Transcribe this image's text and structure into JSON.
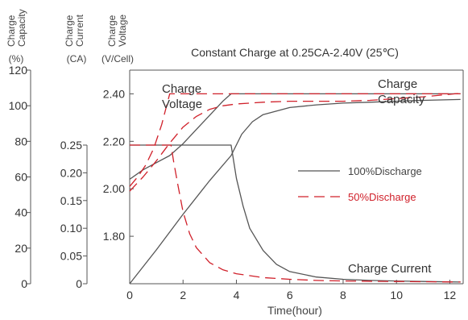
{
  "chart_data": {
    "type": "line",
    "title": "Constant Charge at 0.25CA-2.40V  (25℃)",
    "xlabel": "Time(hour)",
    "xlim": [
      0,
      12.5
    ],
    "xticks": [
      "0",
      "2",
      "4",
      "6",
      "8",
      "10",
      "12"
    ],
    "grid": false,
    "legend_position": "center-right",
    "axes": {
      "capacity": {
        "label_lines": [
          "Charge",
          "Capacity"
        ],
        "unit": "(%)",
        "ylim": [
          0,
          120
        ],
        "ticks": [
          "0",
          "20",
          "40",
          "60",
          "80",
          "100",
          "120"
        ]
      },
      "current": {
        "label_lines": [
          "Charge",
          "Current"
        ],
        "unit": "(CA)",
        "ylim": [
          0,
          0.25
        ],
        "ticks": [
          "0",
          "0.05",
          "0.10",
          "0.15",
          "0.20",
          "0.25"
        ]
      },
      "voltage": {
        "label_lines": [
          "Charge",
          "Voltage"
        ],
        "unit": "(V/Cell)",
        "ylim": [
          1.6,
          2.5
        ],
        "ticks": [
          "1.80",
          "2.00",
          "2.20",
          "2.40"
        ]
      }
    },
    "legend": [
      {
        "label": "100%Discharge",
        "color": "#555555",
        "style": "solid"
      },
      {
        "label": "50%Discharge",
        "color": "#d0202a",
        "style": "dashed"
      }
    ],
    "annotations": [
      {
        "lines": [
          "Charge",
          "Voltage"
        ]
      },
      {
        "lines": [
          "Charge",
          "Capacity"
        ]
      },
      {
        "lines": [
          "Charge Current"
        ]
      }
    ],
    "series": [
      {
        "group": "100%Discharge",
        "quantity": "voltage",
        "axis": "voltage",
        "x": [
          0,
          0.5,
          1,
          1.5,
          2,
          2.5,
          3,
          3.5,
          3.8,
          12.4
        ],
        "y": [
          2.04,
          2.08,
          2.11,
          2.14,
          2.19,
          2.25,
          2.31,
          2.37,
          2.4,
          2.4
        ]
      },
      {
        "group": "100%Discharge",
        "quantity": "current",
        "axis": "current",
        "x": [
          0,
          3.8,
          3.9,
          4.0,
          4.25,
          4.5,
          5,
          5.5,
          6,
          7,
          8,
          9,
          10,
          11,
          12.4
        ],
        "y": [
          0.25,
          0.25,
          0.22,
          0.19,
          0.14,
          0.1,
          0.06,
          0.035,
          0.022,
          0.012,
          0.008,
          0.006,
          0.005,
          0.004,
          0.003
        ]
      },
      {
        "group": "100%Discharge",
        "quantity": "capacity",
        "axis": "capacity",
        "x": [
          0,
          1,
          2,
          3,
          3.8,
          4.2,
          4.6,
          5,
          6,
          7,
          8,
          9,
          10,
          11,
          12.4
        ],
        "y": [
          0,
          19,
          39,
          58,
          72,
          84,
          91,
          95,
          99,
          100.5,
          101.5,
          102,
          102.5,
          103,
          103.5
        ]
      },
      {
        "group": "50%Discharge",
        "quantity": "voltage",
        "axis": "voltage",
        "x": [
          0,
          0.3,
          0.6,
          0.9,
          1.2,
          1.5,
          12.4
        ],
        "y": [
          2.01,
          2.05,
          2.1,
          2.17,
          2.27,
          2.4,
          2.4
        ]
      },
      {
        "group": "50%Discharge",
        "quantity": "current",
        "axis": "current",
        "x": [
          0,
          1.55,
          1.65,
          1.8,
          2,
          2.25,
          2.5,
          3,
          3.5,
          4,
          5,
          6,
          7,
          8,
          10,
          12.4
        ],
        "y": [
          0.25,
          0.25,
          0.22,
          0.18,
          0.13,
          0.09,
          0.065,
          0.038,
          0.025,
          0.018,
          0.011,
          0.008,
          0.006,
          0.005,
          0.004,
          0.003
        ]
      },
      {
        "group": "50%Discharge",
        "quantity": "capacity",
        "axis": "capacity",
        "x": [
          0,
          0.5,
          1,
          1.5,
          2,
          2.5,
          3,
          3.5,
          4,
          5,
          6,
          7,
          8,
          9,
          10,
          11,
          12.4
        ],
        "y": [
          52,
          60,
          69,
          79,
          88,
          94,
          98,
          100,
          101,
          102,
          102.5,
          102.5,
          102.5,
          103,
          104,
          105,
          107
        ]
      }
    ]
  }
}
